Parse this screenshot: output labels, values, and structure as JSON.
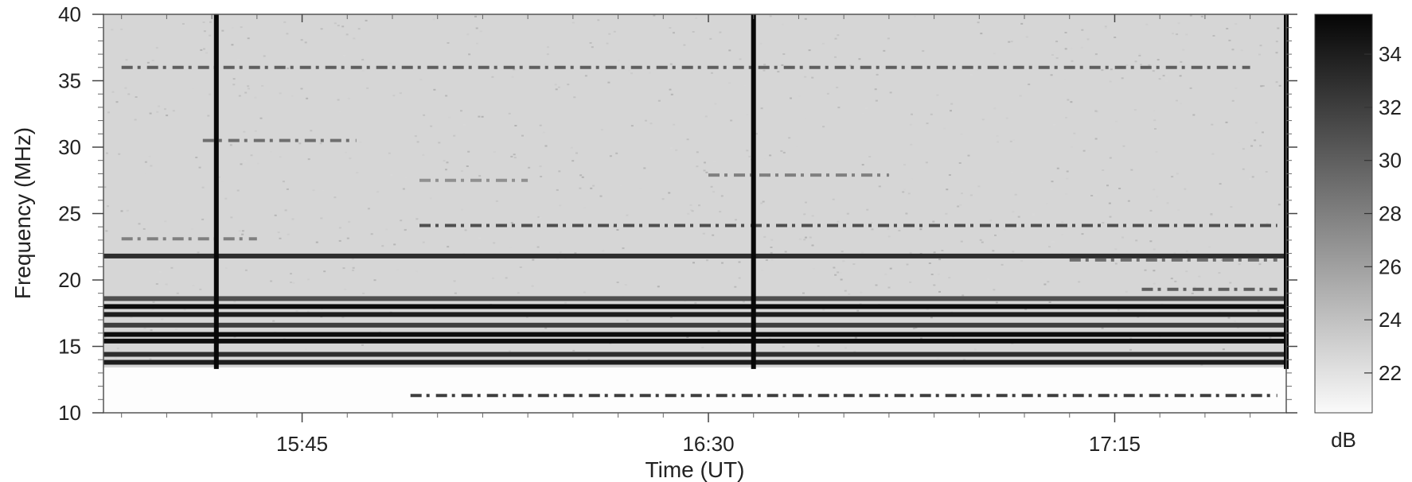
{
  "chart_data": {
    "type": "heatmap",
    "title": "",
    "xlabel": "Time (UT)",
    "ylabel": "Frequency (MHz)",
    "x_tick_labels": [
      "15:45",
      "16:30",
      "17:15"
    ],
    "x_ticks_minutes": [
      945,
      990,
      1035
    ],
    "xlim_minutes": [
      923,
      1054
    ],
    "y_ticks": [
      10,
      15,
      20,
      25,
      30,
      35,
      40
    ],
    "ylim": [
      10,
      40
    ],
    "colorbar": {
      "label": "dB",
      "ticks": [
        22,
        24,
        26,
        28,
        30,
        32,
        34
      ],
      "range": [
        20.5,
        35.5
      ]
    },
    "bright_columns_minutes": [
      935.5,
      995,
      1054
    ],
    "persistent_bands_mhz": [
      {
        "freq": 13.8,
        "level": 34
      },
      {
        "freq": 14.4,
        "level": 33
      },
      {
        "freq": 15.4,
        "level": 35
      },
      {
        "freq": 15.9,
        "level": 35
      },
      {
        "freq": 16.6,
        "level": 32
      },
      {
        "freq": 17.4,
        "level": 34
      },
      {
        "freq": 18.0,
        "level": 35
      },
      {
        "freq": 18.6,
        "level": 31
      },
      {
        "freq": 21.8,
        "level": 33
      }
    ],
    "intermittent_bands_mhz": [
      {
        "freq": 11.3,
        "level": 32,
        "start": 957,
        "end": 1053
      },
      {
        "freq": 24.1,
        "level": 31,
        "start": 958,
        "end": 1053
      },
      {
        "freq": 36.0,
        "level": 30,
        "start": 925,
        "end": 1050
      },
      {
        "freq": 27.9,
        "level": 28,
        "start": 990,
        "end": 1010
      },
      {
        "freq": 27.5,
        "level": 27,
        "start": 958,
        "end": 970
      },
      {
        "freq": 30.5,
        "level": 29,
        "start": 934,
        "end": 951
      },
      {
        "freq": 23.1,
        "level": 28,
        "start": 925,
        "end": 940
      },
      {
        "freq": 19.3,
        "level": 30,
        "start": 1038,
        "end": 1053
      },
      {
        "freq": 21.5,
        "level": 29,
        "start": 1030,
        "end": 1053
      }
    ]
  }
}
